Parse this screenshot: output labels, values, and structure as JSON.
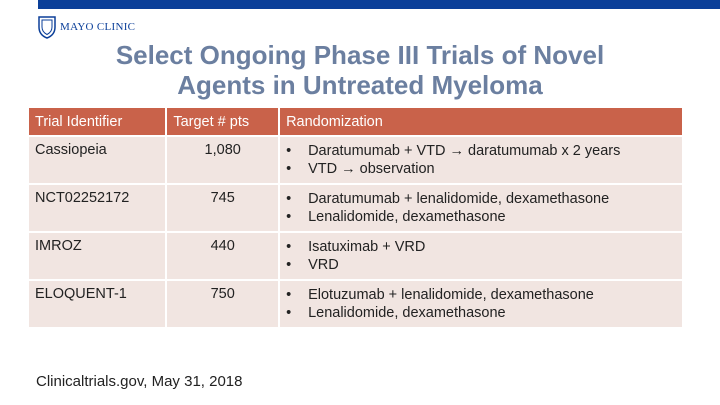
{
  "header": {
    "logo_text": "MAYO CLINIC"
  },
  "slide": {
    "title_line1": "Select Ongoing Phase III Trials of Novel",
    "title_line2": "Agents in Untreated Myeloma"
  },
  "table": {
    "headers": [
      "Trial Identifier",
      "Target # pts",
      "Randomization"
    ],
    "rows": [
      {
        "id": "Cassiopeia",
        "pts": "1,080",
        "arms": [
          "Daratumumab + VTD → daratumumab x 2 years",
          "VTD → observation"
        ]
      },
      {
        "id": "NCT02252172",
        "pts": "745",
        "arms": [
          "Daratumumab + lenalidomide, dexamethasone",
          "Lenalidomide, dexamethasone"
        ]
      },
      {
        "id": "IMROZ",
        "pts": "440",
        "arms": [
          "Isatuximab + VRD",
          "VRD"
        ]
      },
      {
        "id": "ELOQUENT-1",
        "pts": "750",
        "arms": [
          "Elotuzumab + lenalidomide, dexamethasone",
          "Lenalidomide, dexamethasone"
        ]
      }
    ]
  },
  "footer": {
    "source": "Clinicaltrials.gov, May 31, 2018"
  },
  "colors": {
    "header_bar": "#0b3f99",
    "title": "#6b7fa0",
    "table_header": "#c9624a",
    "table_row": "#f1e5e1"
  }
}
